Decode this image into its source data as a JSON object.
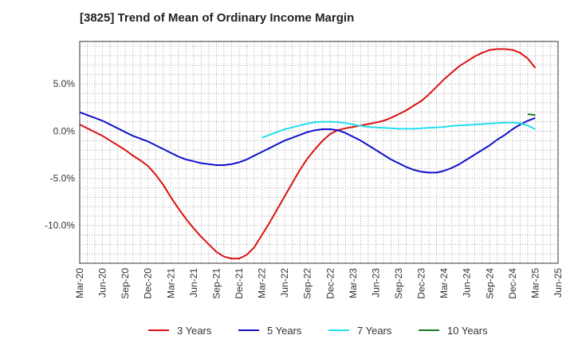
{
  "chart_data": {
    "type": "line",
    "title": "[3825]  Trend of Mean of Ordinary Income Margin",
    "xlabel": "",
    "ylabel": "",
    "x_ticks": [
      "Mar-20",
      "Jun-20",
      "Sep-20",
      "Dec-20",
      "Mar-21",
      "Jun-21",
      "Sep-21",
      "Dec-21",
      "Mar-22",
      "Jun-22",
      "Sep-22",
      "Dec-22",
      "Mar-23",
      "Jun-23",
      "Sep-23",
      "Dec-23",
      "Mar-24",
      "Jun-24",
      "Sep-24",
      "Dec-24",
      "Mar-25",
      "Jun-25"
    ],
    "y_ticks": [
      5.0,
      0.0,
      -5.0,
      -10.0
    ],
    "y_tick_labels": [
      "5.0%",
      "0.0%",
      "-5.0%",
      "-10.0%"
    ],
    "ylim": [
      -14.0,
      9.5
    ],
    "grid": true,
    "legend_position": "bottom",
    "series": [
      {
        "name": "3 Years",
        "color": "#dd1111",
        "x": [
          "Mar-20",
          "Apr-20",
          "May-20",
          "Jun-20",
          "Jul-20",
          "Aug-20",
          "Sep-20",
          "Oct-20",
          "Nov-20",
          "Dec-20",
          "Jan-21",
          "Feb-21",
          "Mar-21",
          "Apr-21",
          "May-21",
          "Jun-21",
          "Jul-21",
          "Aug-21",
          "Sep-21",
          "Oct-21",
          "Nov-21",
          "Dec-21",
          "Jan-22",
          "Feb-22",
          "Mar-22",
          "Apr-22",
          "May-22",
          "Jun-22",
          "Jul-22",
          "Aug-22",
          "Sep-22",
          "Oct-22",
          "Nov-22",
          "Dec-22",
          "Jan-23",
          "Feb-23",
          "Mar-23",
          "Apr-23",
          "May-23",
          "Jun-23",
          "Jul-23",
          "Aug-23",
          "Sep-23",
          "Oct-23",
          "Nov-23",
          "Dec-23",
          "Jan-24",
          "Feb-24",
          "Mar-24",
          "Apr-24",
          "May-24",
          "Jun-24",
          "Jul-24",
          "Aug-24",
          "Sep-24",
          "Oct-24",
          "Nov-24",
          "Dec-24",
          "Jan-25",
          "Feb-25",
          "Mar-25"
        ],
        "values": [
          0.7,
          0.3,
          -0.1,
          -0.5,
          -1.0,
          -1.5,
          -2.0,
          -2.6,
          -3.1,
          -3.7,
          -4.6,
          -5.7,
          -7.0,
          -8.2,
          -9.3,
          -10.3,
          -11.2,
          -12.0,
          -12.8,
          -13.3,
          -13.5,
          -13.5,
          -13.1,
          -12.3,
          -11.0,
          -9.7,
          -8.3,
          -6.9,
          -5.5,
          -4.1,
          -2.9,
          -1.9,
          -1.0,
          -0.3,
          0.1,
          0.3,
          0.45,
          0.6,
          0.75,
          0.9,
          1.1,
          1.4,
          1.8,
          2.2,
          2.7,
          3.2,
          3.9,
          4.7,
          5.5,
          6.2,
          6.9,
          7.4,
          7.9,
          8.3,
          8.6,
          8.7,
          8.7,
          8.6,
          8.3,
          7.7,
          6.7
        ]
      },
      {
        "name": "5 Years",
        "color": "#1111cc",
        "x": [
          "Mar-20",
          "Apr-20",
          "May-20",
          "Jun-20",
          "Jul-20",
          "Aug-20",
          "Sep-20",
          "Oct-20",
          "Nov-20",
          "Dec-20",
          "Jan-21",
          "Feb-21",
          "Mar-21",
          "Apr-21",
          "May-21",
          "Jun-21",
          "Jul-21",
          "Aug-21",
          "Sep-21",
          "Oct-21",
          "Nov-21",
          "Dec-21",
          "Jan-22",
          "Feb-22",
          "Mar-22",
          "Apr-22",
          "May-22",
          "Jun-22",
          "Jul-22",
          "Aug-22",
          "Sep-22",
          "Oct-22",
          "Nov-22",
          "Dec-22",
          "Jan-23",
          "Feb-23",
          "Mar-23",
          "Apr-23",
          "May-23",
          "Jun-23",
          "Jul-23",
          "Aug-23",
          "Sep-23",
          "Oct-23",
          "Nov-23",
          "Dec-23",
          "Jan-24",
          "Feb-24",
          "Mar-24",
          "Apr-24",
          "May-24",
          "Jun-24",
          "Jul-24",
          "Aug-24",
          "Sep-24",
          "Oct-24",
          "Nov-24",
          "Dec-24",
          "Jan-25",
          "Feb-25",
          "Mar-25"
        ],
        "values": [
          2.0,
          1.7,
          1.4,
          1.1,
          0.7,
          0.3,
          -0.1,
          -0.5,
          -0.8,
          -1.1,
          -1.5,
          -1.9,
          -2.3,
          -2.7,
          -3.0,
          -3.2,
          -3.4,
          -3.5,
          -3.6,
          -3.6,
          -3.5,
          -3.3,
          -3.0,
          -2.6,
          -2.2,
          -1.8,
          -1.4,
          -1.0,
          -0.7,
          -0.4,
          -0.1,
          0.1,
          0.2,
          0.2,
          0.1,
          -0.2,
          -0.6,
          -1.0,
          -1.5,
          -2.0,
          -2.5,
          -3.0,
          -3.4,
          -3.8,
          -4.1,
          -4.3,
          -4.4,
          -4.4,
          -4.2,
          -3.9,
          -3.5,
          -3.0,
          -2.5,
          -2.0,
          -1.5,
          -0.9,
          -0.4,
          0.2,
          0.7,
          1.1,
          1.4
        ]
      },
      {
        "name": "7 Years",
        "color": "#22e0ee",
        "x": [
          "Mar-22",
          "Apr-22",
          "May-22",
          "Jun-22",
          "Jul-22",
          "Aug-22",
          "Sep-22",
          "Oct-22",
          "Nov-22",
          "Dec-22",
          "Jan-23",
          "Feb-23",
          "Mar-23",
          "Apr-23",
          "May-23",
          "Jun-23",
          "Jul-23",
          "Aug-23",
          "Sep-23",
          "Oct-23",
          "Nov-23",
          "Dec-23",
          "Jan-24",
          "Feb-24",
          "Mar-24",
          "Apr-24",
          "May-24",
          "Jun-24",
          "Jul-24",
          "Aug-24",
          "Sep-24",
          "Oct-24",
          "Nov-24",
          "Dec-24",
          "Jan-25",
          "Feb-25",
          "Mar-25"
        ],
        "values": [
          -0.7,
          -0.4,
          -0.1,
          0.2,
          0.4,
          0.6,
          0.8,
          0.95,
          1.0,
          1.0,
          0.95,
          0.85,
          0.7,
          0.55,
          0.45,
          0.4,
          0.35,
          0.3,
          0.25,
          0.25,
          0.25,
          0.3,
          0.35,
          0.4,
          0.45,
          0.55,
          0.6,
          0.65,
          0.7,
          0.75,
          0.8,
          0.85,
          0.9,
          0.9,
          0.85,
          0.6,
          0.2
        ]
      },
      {
        "name": "10 Years",
        "color": "#1a7a1a",
        "x": [
          "Feb-25",
          "Mar-25"
        ],
        "values": [
          1.8,
          1.7
        ]
      }
    ]
  }
}
